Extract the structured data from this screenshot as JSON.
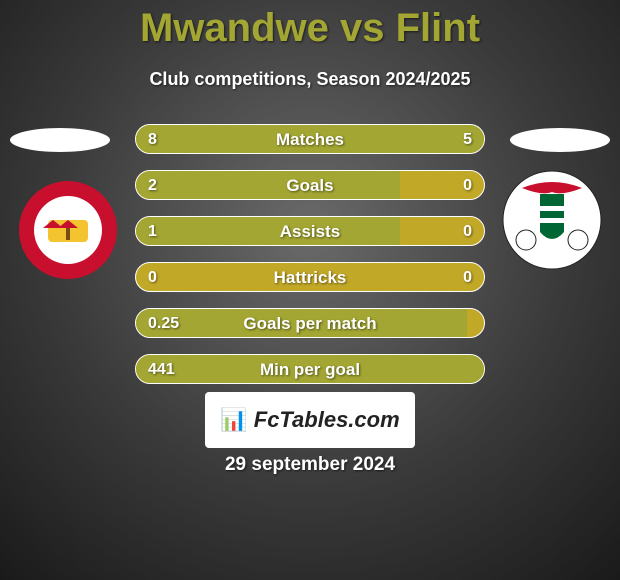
{
  "title": "Mwandwe vs Flint",
  "subtitle": "Club competitions, Season 2024/2025",
  "date": "29 september 2024",
  "brand": "FcTables.com",
  "colors": {
    "title": "#a3a632",
    "bar_base": "#C2A827",
    "bar_fill": "#A3A632",
    "bar_border": "#ffffff",
    "text": "#ffffff",
    "bg_center": "#6a6a6a",
    "bg_edge": "#1a1a1a",
    "brand_bg": "#ffffff"
  },
  "bars": [
    {
      "label": "Matches",
      "left_val": "8",
      "right_val": "5",
      "left_pct": 62,
      "right_pct": 38
    },
    {
      "label": "Goals",
      "left_val": "2",
      "right_val": "0",
      "left_pct": 76,
      "right_pct": 0
    },
    {
      "label": "Assists",
      "left_val": "1",
      "right_val": "0",
      "left_pct": 76,
      "right_pct": 0
    },
    {
      "label": "Hattricks",
      "left_val": "0",
      "right_val": "0",
      "left_pct": 0,
      "right_pct": 0
    },
    {
      "label": "Goals per match",
      "left_val": "0.25",
      "right_val": "",
      "left_pct": 95,
      "right_pct": 0
    },
    {
      "label": "Min per goal",
      "left_val": "441",
      "right_val": "",
      "left_pct": 100,
      "right_pct": 0
    }
  ],
  "badges": {
    "left": {
      "name": "Connah's Quay Nomads crest",
      "outer_color": "#c8102e",
      "inner_color": "#ffffff"
    },
    "right": {
      "name": "Flint Town United crest",
      "outer_color": "#ffffff",
      "ribbon_color": "#c8102e",
      "shield_stripes": [
        "#006633",
        "#ffffff"
      ]
    }
  }
}
